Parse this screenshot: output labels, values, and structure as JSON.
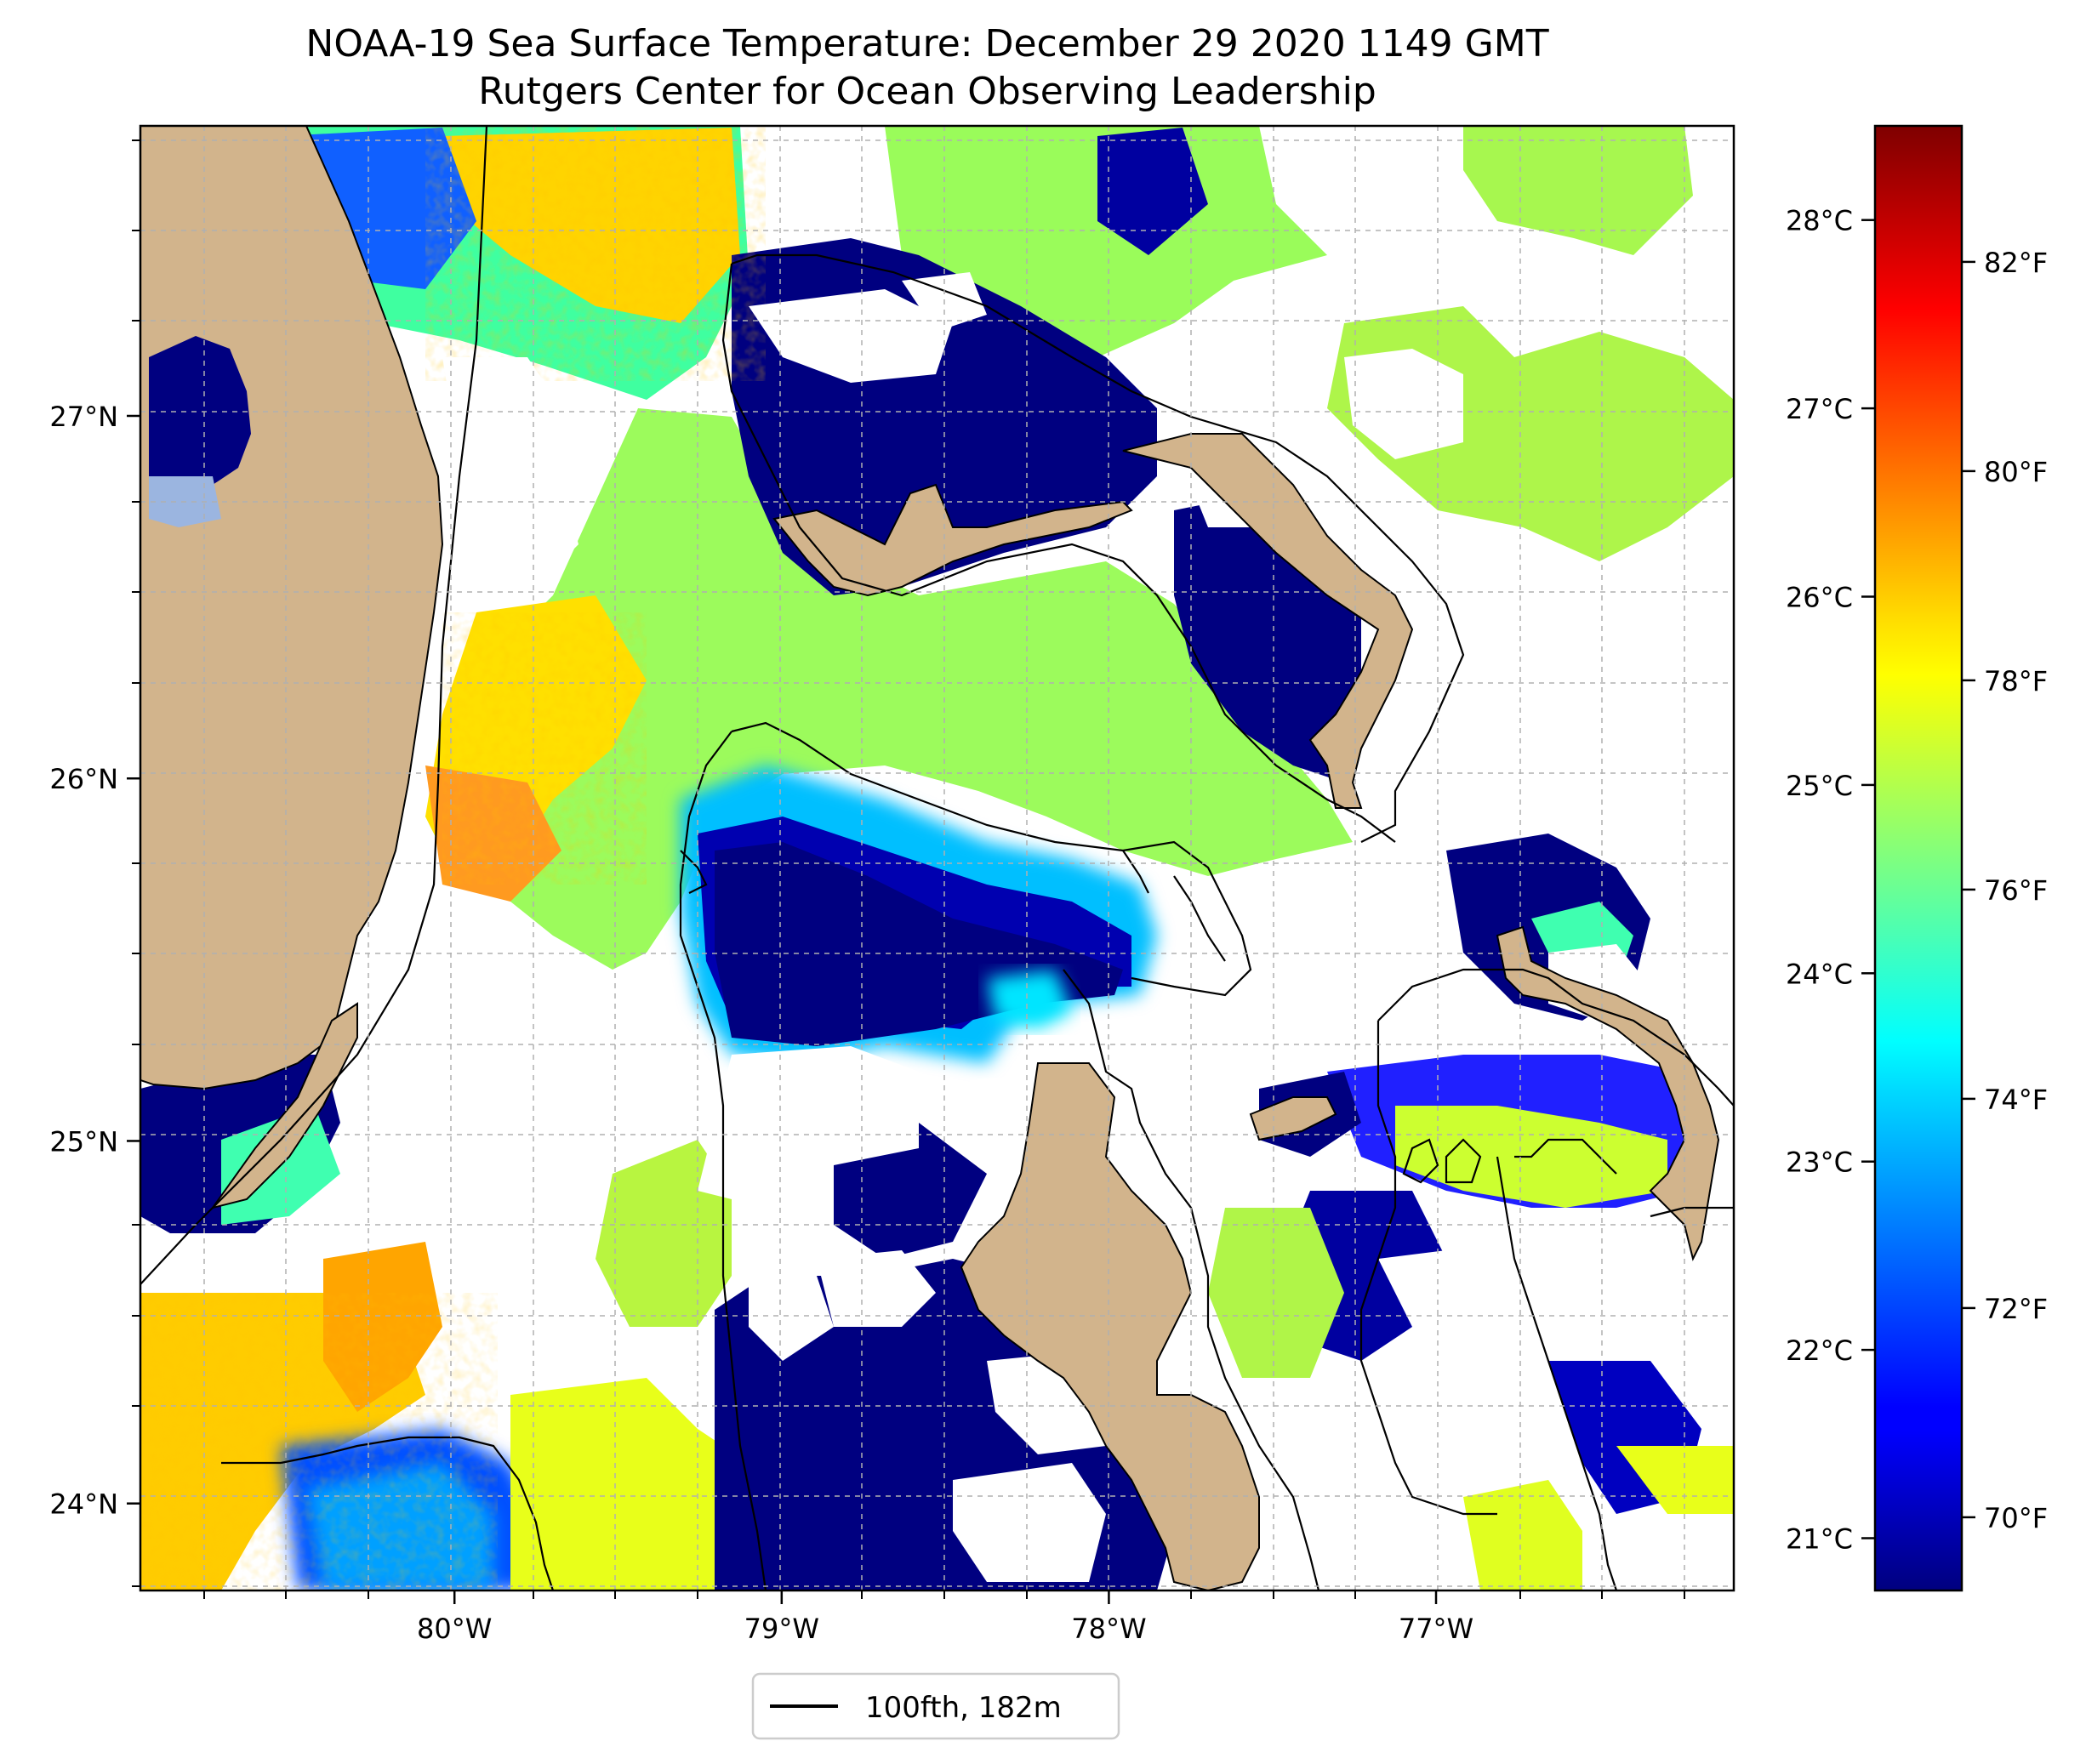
{
  "title": {
    "line1": "NOAA-19 Sea Surface Temperature: December 29 2020 1149 GMT",
    "line2": "Rutgers Center for Ocean Observing Leadership"
  },
  "map": {
    "lon_ticks": [
      {
        "value": -80,
        "label": "80°W"
      },
      {
        "value": -79,
        "label": "79°W"
      },
      {
        "value": -78,
        "label": "78°W"
      },
      {
        "value": -77,
        "label": "77°W"
      }
    ],
    "lat_ticks": [
      {
        "value": 27,
        "label": "27°N"
      },
      {
        "value": 26,
        "label": "26°N"
      },
      {
        "value": 25,
        "label": "25°N"
      },
      {
        "value": 24,
        "label": "24°N"
      }
    ],
    "lon_range": [
      -80.96,
      -76.09
    ],
    "lat_range": [
      23.76,
      27.8
    ],
    "land_color": "#d2b48c",
    "gridlines": true
  },
  "colorbar": {
    "colormap": "jet",
    "celsius_ticks": [
      {
        "value": 28,
        "label": "28°C"
      },
      {
        "value": 27,
        "label": "27°C"
      },
      {
        "value": 26,
        "label": "26°C"
      },
      {
        "value": 25,
        "label": "25°C"
      },
      {
        "value": 24,
        "label": "24°C"
      },
      {
        "value": 23,
        "label": "23°C"
      },
      {
        "value": 22,
        "label": "22°C"
      },
      {
        "value": 21,
        "label": "21°C"
      }
    ],
    "fahrenheit_ticks": [
      {
        "value": 82,
        "label": "82°F"
      },
      {
        "value": 80,
        "label": "80°F"
      },
      {
        "value": 78,
        "label": "78°F"
      },
      {
        "value": 76,
        "label": "76°F"
      },
      {
        "value": 74,
        "label": "74°F"
      },
      {
        "value": 72,
        "label": "72°F"
      },
      {
        "value": 70,
        "label": "70°F"
      }
    ],
    "range_f": [
      69.3,
      83.3
    ]
  },
  "legend": {
    "label": "100fth, 182m",
    "placement": "bottom-center"
  }
}
